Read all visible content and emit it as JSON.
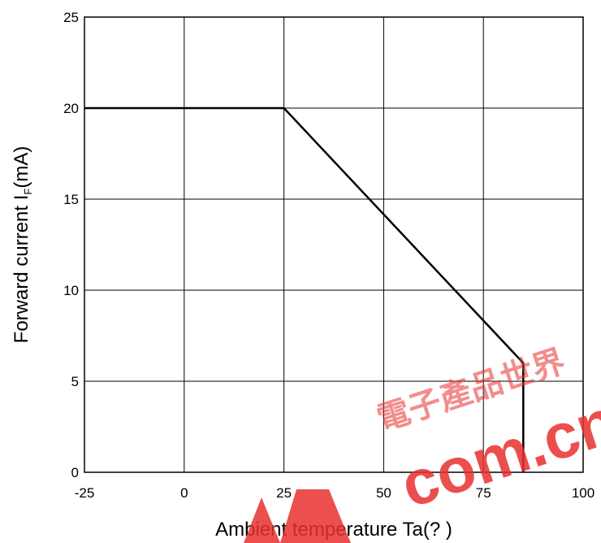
{
  "chart_data": {
    "type": "line",
    "xlabel": "Ambient temperature Ta(? )",
    "ylabel": {
      "main": "Forward current I",
      "subscript": "F",
      "unit": "(mA)"
    },
    "xlim": [
      -25,
      100
    ],
    "ylim": [
      0,
      25
    ],
    "xticks": [
      -25,
      0,
      25,
      50,
      75,
      100
    ],
    "yticks": [
      0,
      5,
      10,
      15,
      20,
      25
    ],
    "grid": true,
    "legend": "none",
    "series": [
      {
        "color": "#000000",
        "points": [
          {
            "x": -25,
            "y": 20
          },
          {
            "x": 25,
            "y": 20
          },
          {
            "x": 85,
            "y": 6
          },
          {
            "x": 85,
            "y": 0
          }
        ]
      }
    ]
  },
  "watermark": {
    "latin": "com.cn",
    "chinese": "電子產品世界",
    "color": "#e8312f"
  }
}
